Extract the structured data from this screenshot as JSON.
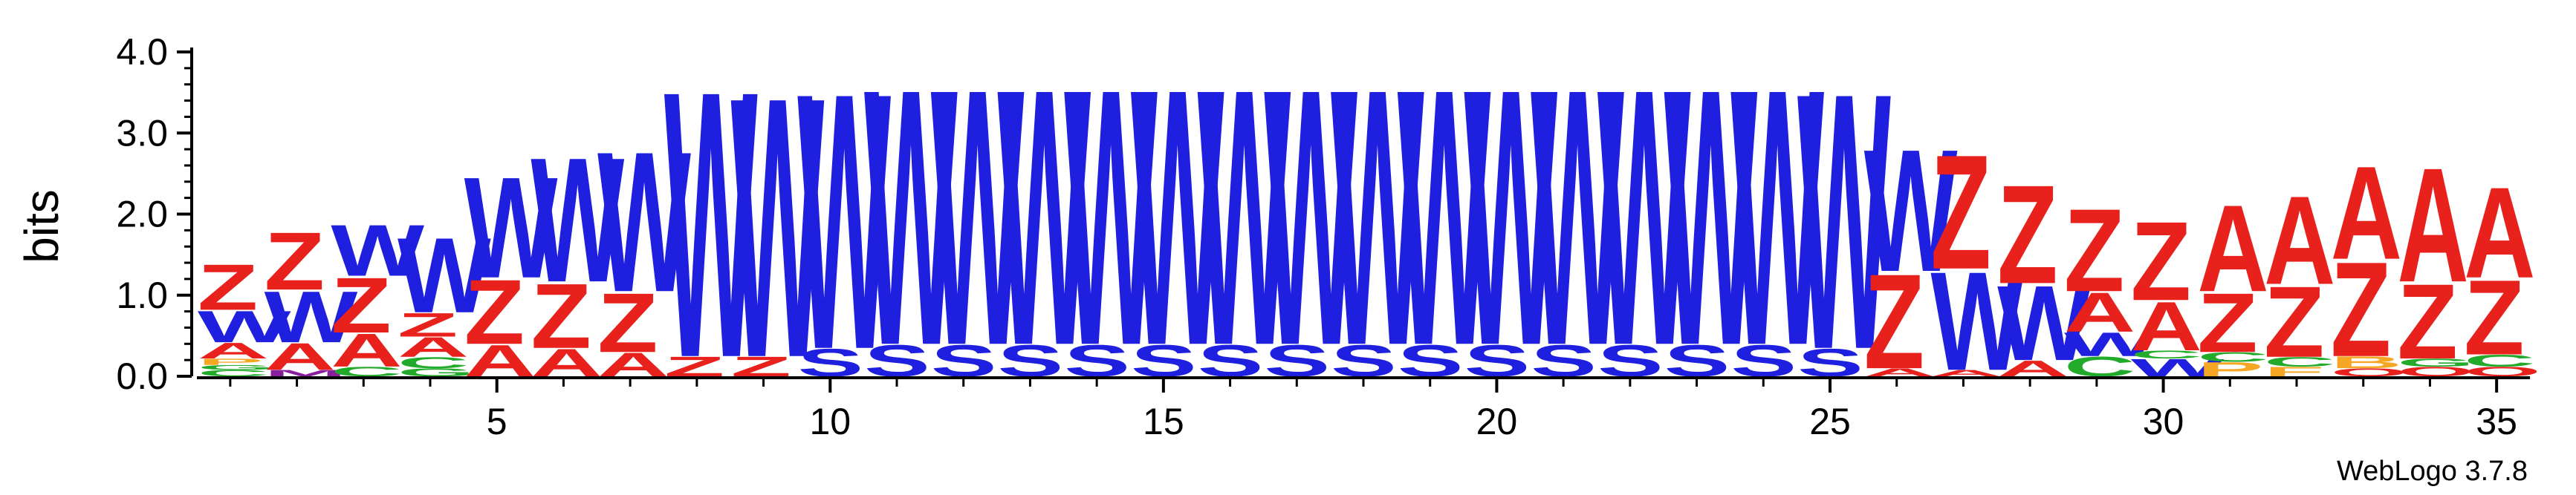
{
  "chart_data": {
    "type": "sequence-logo",
    "ylabel": "bits",
    "ylim": [
      0,
      4.0
    ],
    "y_ticks": [
      "0.0",
      "1.0",
      "2.0",
      "3.0",
      "4.0"
    ],
    "x_ticks": [
      "5",
      "10",
      "15",
      "20",
      "25",
      "30",
      "35"
    ],
    "x_tick_values": [
      5,
      10,
      15,
      20,
      25,
      30,
      35
    ],
    "positions": 35,
    "watermark": "WebLogo 3.7.8",
    "colors": {
      "Z": "#e8211c",
      "A": "#e8211c",
      "W": "#1f1fe0",
      "S": "#1f1fe0",
      "C": "#22aa2a",
      "G": "#22aa2a",
      "P": "#f5a623",
      "B": "#f5a623",
      "Q": "#e8211c",
      "M": "#8a1f9e",
      "F": "#f5a623"
    },
    "stacks": [
      [
        [
          "C",
          0.08
        ],
        [
          "G",
          0.06
        ],
        [
          "P",
          0.08
        ],
        [
          "A",
          0.2
        ],
        [
          "W",
          0.4
        ],
        [
          "Z",
          0.58
        ]
      ],
      [
        [
          "M",
          0.08
        ],
        [
          "A",
          0.34
        ],
        [
          "W",
          0.65
        ],
        [
          "Z",
          0.73
        ]
      ],
      [
        [
          "C",
          0.12
        ],
        [
          "A",
          0.42
        ],
        [
          "Z",
          0.7
        ],
        [
          "W",
          0.65
        ]
      ],
      [
        [
          "G",
          0.1
        ],
        [
          "C",
          0.14
        ],
        [
          "A",
          0.25
        ],
        [
          "Z",
          0.3
        ],
        [
          "W",
          0.95
        ]
      ],
      [
        [
          "A",
          0.4
        ],
        [
          "Z",
          0.82
        ],
        [
          "W",
          1.28
        ]
      ],
      [
        [
          "A",
          0.35
        ],
        [
          "Z",
          0.82
        ],
        [
          "W",
          1.58
        ]
      ],
      [
        [
          "A",
          0.3
        ],
        [
          "Z",
          0.75
        ],
        [
          "W",
          1.78
        ]
      ],
      [
        [
          "Z",
          0.25
        ],
        [
          "W",
          3.38
        ]
      ],
      [
        [
          "Z",
          0.25
        ],
        [
          "W",
          3.3
        ]
      ],
      [
        [
          "S",
          0.35
        ],
        [
          "W",
          3.25
        ]
      ],
      [
        [
          "S",
          0.4
        ],
        [
          "W",
          3.25
        ]
      ],
      [
        [
          "S",
          0.4
        ],
        [
          "W",
          3.25
        ]
      ],
      [
        [
          "S",
          0.4
        ],
        [
          "W",
          3.25
        ]
      ],
      [
        [
          "S",
          0.4
        ],
        [
          "W",
          3.25
        ]
      ],
      [
        [
          "S",
          0.4
        ],
        [
          "W",
          3.25
        ]
      ],
      [
        [
          "S",
          0.4
        ],
        [
          "W",
          3.25
        ]
      ],
      [
        [
          "S",
          0.4
        ],
        [
          "W",
          3.25
        ]
      ],
      [
        [
          "S",
          0.4
        ],
        [
          "W",
          3.25
        ]
      ],
      [
        [
          "S",
          0.4
        ],
        [
          "W",
          3.25
        ]
      ],
      [
        [
          "S",
          0.4
        ],
        [
          "W",
          3.25
        ]
      ],
      [
        [
          "S",
          0.4
        ],
        [
          "W",
          3.25
        ]
      ],
      [
        [
          "S",
          0.4
        ],
        [
          "W",
          3.25
        ]
      ],
      [
        [
          "S",
          0.4
        ],
        [
          "W",
          3.25
        ]
      ],
      [
        [
          "S",
          0.4
        ],
        [
          "W",
          3.25
        ]
      ],
      [
        [
          "S",
          0.35
        ],
        [
          "W",
          3.25
        ]
      ],
      [
        [
          "A",
          0.1
        ],
        [
          "Z",
          1.2
        ],
        [
          "W",
          1.55
        ]
      ],
      [
        [
          "A",
          0.08
        ],
        [
          "W",
          1.25
        ],
        [
          "Z",
          1.45
        ]
      ],
      [
        [
          "A",
          0.2
        ],
        [
          "W",
          0.95
        ],
        [
          "Z",
          1.25
        ]
      ],
      [
        [
          "C",
          0.25
        ],
        [
          "W",
          0.3
        ],
        [
          "A",
          0.5
        ],
        [
          "Z",
          1.05
        ]
      ],
      [
        [
          "W",
          0.22
        ],
        [
          "C",
          0.1
        ],
        [
          "A",
          0.62
        ],
        [
          "Z",
          1.0
        ]
      ],
      [
        [
          "P",
          0.18
        ],
        [
          "C",
          0.12
        ],
        [
          "Z",
          0.75
        ],
        [
          "A",
          1.1
        ]
      ],
      [
        [
          "F",
          0.12
        ],
        [
          "C",
          0.12
        ],
        [
          "Z",
          0.9
        ],
        [
          "A",
          1.12
        ]
      ],
      [
        [
          "Q",
          0.1
        ],
        [
          "B",
          0.15
        ],
        [
          "Z",
          1.2
        ],
        [
          "A",
          1.18
        ]
      ],
      [
        [
          "Q",
          0.12
        ],
        [
          "G",
          0.1
        ],
        [
          "Z",
          0.95
        ],
        [
          "A",
          1.45
        ]
      ],
      [
        [
          "Q",
          0.12
        ],
        [
          "C",
          0.15
        ],
        [
          "Z",
          0.95
        ],
        [
          "A",
          1.15
        ]
      ]
    ]
  }
}
